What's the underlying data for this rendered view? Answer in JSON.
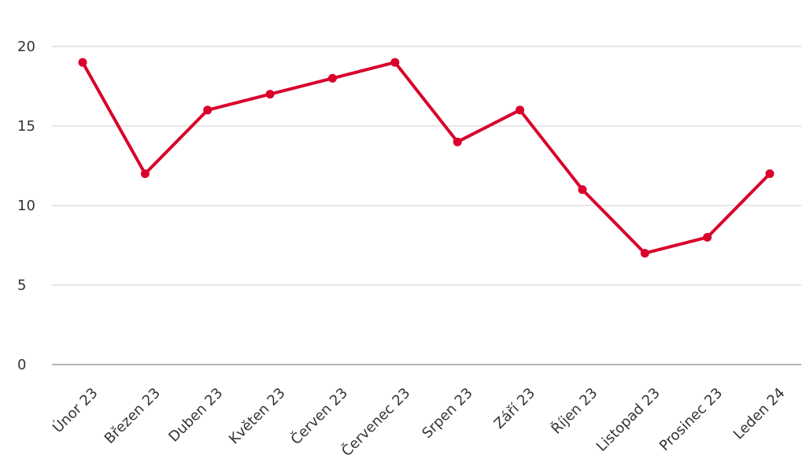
{
  "colors": {
    "series": "#d9002b",
    "grid": "#cfcfcf",
    "axis": "#9a9a9a",
    "text": "#333333"
  },
  "chart_data": {
    "type": "line",
    "title": "",
    "xlabel": "",
    "ylabel": "",
    "categories": [
      "Únor 23",
      "Březen 23",
      "Duben 23",
      "Květen 23",
      "Červen 23",
      "Červenec 23",
      "Srpen 23",
      "Září 23",
      "Říjen 23",
      "Listopad 23",
      "Prosinec 23",
      "Leden 24"
    ],
    "series": [
      {
        "values": [
          19,
          12,
          16,
          17,
          18,
          19,
          14,
          16,
          11,
          7,
          8,
          12
        ]
      }
    ],
    "ylim": [
      0,
      20
    ],
    "yticks": [
      "0",
      "5",
      "10",
      "15",
      "20"
    ],
    "grid": true,
    "legend": "none"
  }
}
